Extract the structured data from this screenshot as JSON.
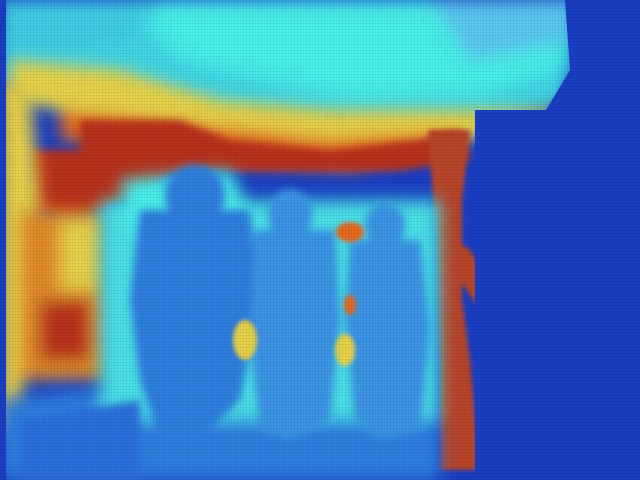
{
  "image": {
    "kind": "depth-map",
    "colormap": "jet",
    "colors": {
      "far": "#1a3fc4",
      "mid_far": "#2f7fe0",
      "mid": "#3fd6e6",
      "cyan_light": "#49f0ec",
      "mid_near": "#e7d24a",
      "near": "#e46a22",
      "nearest": "#b9321a"
    }
  }
}
